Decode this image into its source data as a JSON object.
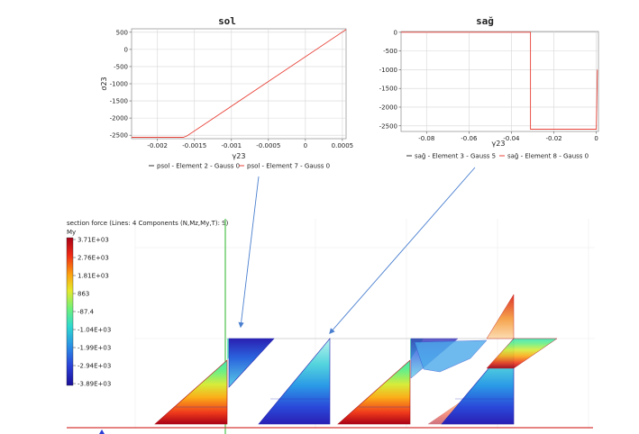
{
  "chart_data": [
    {
      "type": "line",
      "title": "sol",
      "xlabel": "γ23",
      "ylabel": "σ23",
      "xlim": [
        -0.00235,
        0.00055
      ],
      "ylim": [
        -2600,
        600
      ],
      "xticks": [
        -0.002,
        -0.0015,
        -0.001,
        -0.0005,
        0,
        0.0005
      ],
      "xtick_labels": [
        "-0.002",
        "-0.0015",
        "-0.001",
        "-0.0005",
        "0",
        "0.0005"
      ],
      "yticks": [
        500,
        0,
        -500,
        -1000,
        -1500,
        -2000,
        -2500
      ],
      "ytick_labels": [
        "500",
        "0",
        "-500",
        "-1000",
        "-1500",
        "-2000",
        "-2500"
      ],
      "grid": true,
      "legend_position": "bottom",
      "series": [
        {
          "name": "psol - Element 2 - Gauss 0",
          "color": "#333333",
          "x": [],
          "y": []
        },
        {
          "name": "psol - Element 7 - Gauss 0",
          "color": "#e8433a",
          "x": [
            -0.00235,
            -0.00165,
            -0.0016,
            0.00055
          ],
          "y": [
            -2560,
            -2560,
            -2520,
            580
          ]
        }
      ]
    },
    {
      "type": "line",
      "title": "sağ",
      "xlabel": "γ23",
      "ylabel": "",
      "xlim": [
        -0.092,
        0.001
      ],
      "ylim": [
        -2650,
        20
      ],
      "xticks": [
        -0.08,
        -0.06,
        -0.04,
        -0.02,
        0
      ],
      "xtick_labels": [
        "-0.08",
        "-0.06",
        "-0.04",
        "-0.02",
        "0"
      ],
      "yticks": [
        0,
        -500,
        -1000,
        -1500,
        -2000,
        -2500
      ],
      "ytick_labels": [
        "0",
        "-500",
        "-1000",
        "-1500",
        "-2000",
        "-2500"
      ],
      "grid": true,
      "legend_position": "bottom",
      "series": [
        {
          "name": "sağ - Element 3 - Gauss 5",
          "color": "#333333",
          "x": [],
          "y": []
        },
        {
          "name": "sağ - Element 8 - Gauss 0",
          "color": "#e8433a",
          "x": [
            -0.092,
            -0.031,
            -0.031,
            -0.0005,
            0.0,
            0.0005,
            0.0005
          ],
          "y": [
            0,
            0,
            -2590,
            -2590,
            -2590,
            -1000,
            -1000
          ]
        }
      ]
    }
  ],
  "viewport": {
    "title": "section force (Lines: 4 Components (N,Mz,My,T): S)",
    "component": "My",
    "colorbar_labels": [
      "3.71E+03",
      "2.76E+03",
      "1.81E+03",
      "863",
      "-87.4",
      "-1.04E+03",
      "-1.99E+03",
      "-2.94E+03",
      "-3.89E+03"
    ],
    "colors": {
      "max": "#b2001b",
      "mid": "#3fe4b5",
      "min": "#1b0fa6",
      "axis_green": "#4cc24c",
      "axis_red": "#d83a3a",
      "arrow": "#4a7fcf"
    }
  }
}
